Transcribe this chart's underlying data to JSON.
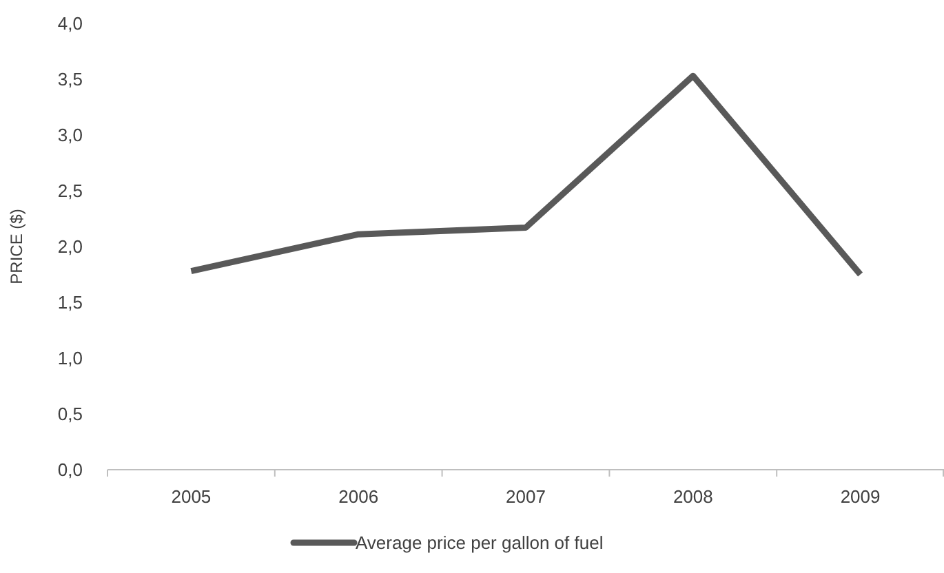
{
  "chart_data": {
    "type": "line",
    "ylabel": "PRICE ($)",
    "categories": [
      "2005",
      "2006",
      "2007",
      "2008",
      "2009"
    ],
    "series": [
      {
        "name": "Average price per gallon of fuel",
        "color": "#595959",
        "values": [
          1.78,
          2.11,
          2.17,
          3.53,
          1.75
        ]
      }
    ],
    "ylim": [
      0,
      4
    ],
    "yticks": [
      {
        "value": 0,
        "label": "0,0"
      },
      {
        "value": 0.5,
        "label": "0,5"
      },
      {
        "value": 1,
        "label": "1,0"
      },
      {
        "value": 1.5,
        "label": "1,5"
      },
      {
        "value": 2,
        "label": "2,0"
      },
      {
        "value": 2.5,
        "label": "2,5"
      },
      {
        "value": 3,
        "label": "3,0"
      },
      {
        "value": 3.5,
        "label": "3,5"
      },
      {
        "value": 4,
        "label": "4,0"
      }
    ],
    "grid": false,
    "legend": "bottom",
    "marker": "none",
    "line_style": "solid"
  }
}
